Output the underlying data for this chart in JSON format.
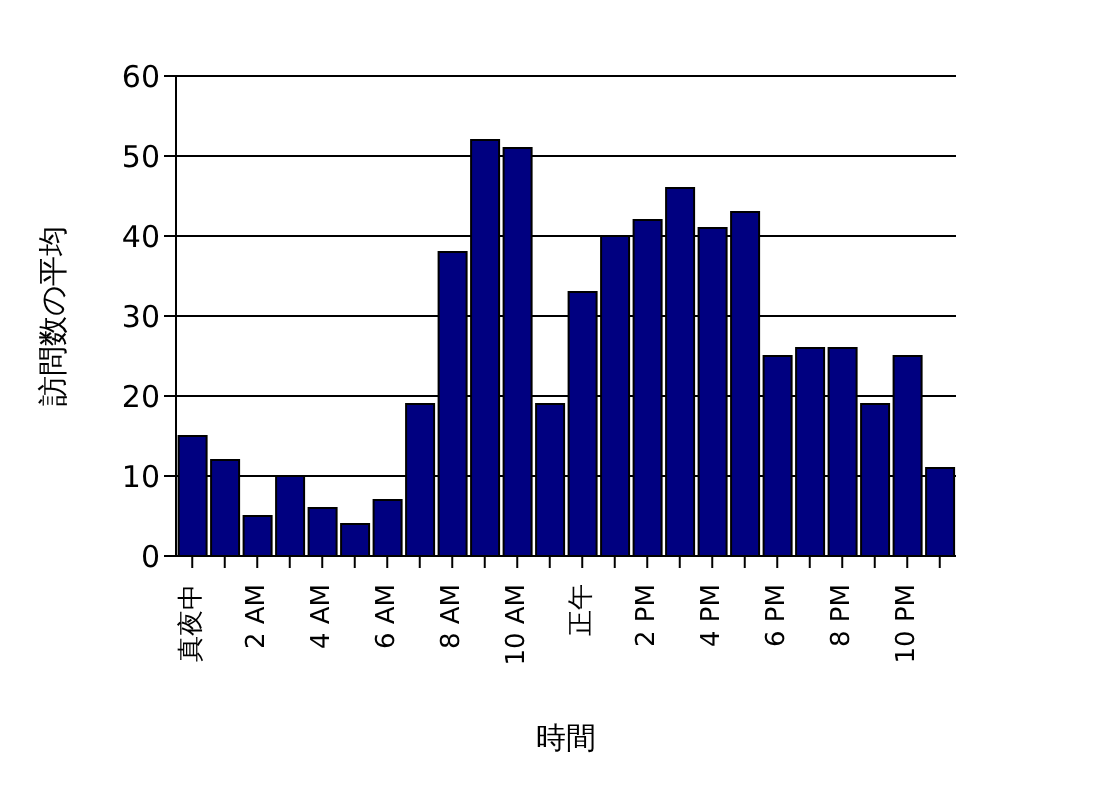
{
  "chart_data": {
    "type": "bar",
    "xlabel": "時間",
    "ylabel": "訪問数の平均",
    "categories": [
      "真夜中",
      null,
      "2 AM",
      null,
      "4 AM",
      null,
      "6 AM",
      null,
      "8 AM",
      null,
      "10 AM",
      null,
      "正午",
      null,
      "2 PM",
      null,
      "4 PM",
      null,
      "6 PM",
      null,
      "8 PM",
      null,
      "10 PM",
      null
    ],
    "values": [
      15,
      12,
      5,
      10,
      6,
      4,
      7,
      19,
      38,
      52,
      51,
      19,
      33,
      40,
      42,
      46,
      41,
      43,
      25,
      26,
      26,
      19,
      25,
      11
    ],
    "color": "#000080",
    "ylim": [
      0,
      60
    ],
    "yticks": [
      0,
      10,
      20,
      30,
      40,
      50,
      60
    ],
    "grid": "y",
    "legend": false
  }
}
